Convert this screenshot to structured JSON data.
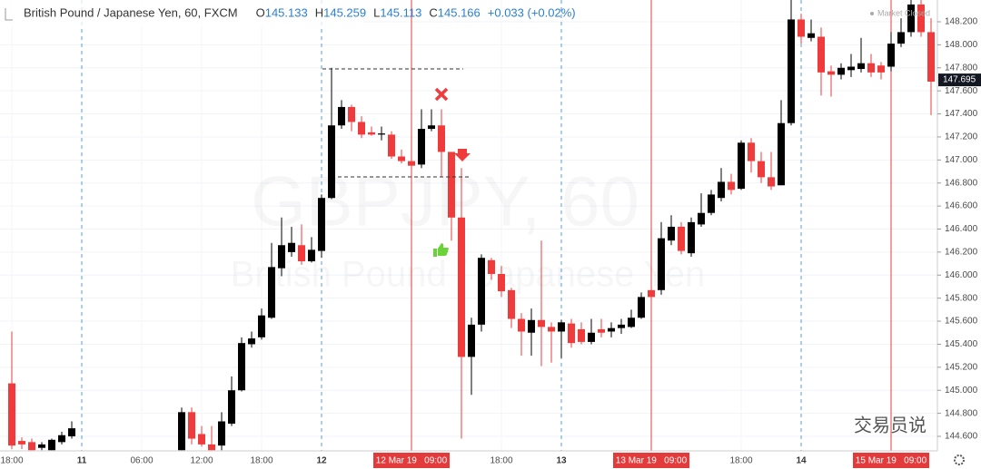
{
  "chart_data": {
    "type": "candlestick",
    "symbol": "British Pound / Japanese Yen, 60, FXCM",
    "ohlc_legend": [
      {
        "label": "O",
        "value": 145.133
      },
      {
        "label": "H",
        "value": 145.259
      },
      {
        "label": "L",
        "value": 145.113
      },
      {
        "label": "C",
        "value": 145.166
      }
    ],
    "change": "+0.033 (+0.02%)",
    "status": "Market Closed",
    "watermark": "GBPJPY, 60",
    "watermark_subtitle": "British Pound / Japanese Yen",
    "credit": "交易员说",
    "last_price": 147.695,
    "up_color": "#000000",
    "down_color": "#ef3b3b",
    "ylim": [
      144.474,
      148.389
    ],
    "yticks": [
      {
        "value": 148.2,
        "label": "148.200"
      },
      {
        "value": 148.0,
        "label": "148.000"
      },
      {
        "value": 147.8,
        "label": "147.800"
      },
      {
        "value": 147.6,
        "label": "147.600"
      },
      {
        "value": 147.4,
        "label": "147.400"
      },
      {
        "value": 147.2,
        "label": "147.200"
      },
      {
        "value": 147.0,
        "label": "147.000"
      },
      {
        "value": 146.8,
        "label": "146.800"
      },
      {
        "value": 146.6,
        "label": "146.600"
      },
      {
        "value": 146.4,
        "label": "146.400"
      },
      {
        "value": 146.2,
        "label": "146.200"
      },
      {
        "value": 146.0,
        "label": "146.000"
      },
      {
        "value": 145.8,
        "label": "145.800"
      },
      {
        "value": 145.6,
        "label": "145.600"
      },
      {
        "value": 145.4,
        "label": "145.400"
      },
      {
        "value": 145.2,
        "label": "145.200"
      },
      {
        "value": 145.0,
        "label": "145.000"
      },
      {
        "value": 144.8,
        "label": "144.800"
      },
      {
        "value": 144.6,
        "label": "144.600"
      }
    ],
    "grid": true,
    "categories": [
      "18:00",
      null,
      null,
      null,
      null,
      null,
      null,
      "11",
      null,
      null,
      null,
      null,
      null,
      "06:00",
      null,
      null,
      null,
      null,
      null,
      "12:00",
      null,
      null,
      null,
      null,
      null,
      "18:00",
      null,
      null,
      null,
      null,
      null,
      "12",
      null,
      null,
      null,
      null,
      null,
      null,
      null,
      null,
      "12 Mar 19   09:00",
      null,
      null,
      null,
      null,
      null,
      null,
      null,
      null,
      "18:00",
      null,
      null,
      null,
      null,
      null,
      "13",
      null,
      null,
      null,
      null,
      null,
      null,
      null,
      null,
      "13 Mar 19   09:00",
      null,
      null,
      null,
      null,
      null,
      null,
      null,
      null,
      "18:00",
      null,
      null,
      null,
      null,
      null,
      "14",
      null,
      null,
      null,
      null,
      null,
      null,
      null,
      null,
      "15 Mar 19   09:00",
      null,
      null,
      null,
      null
    ],
    "open": [
      145.06,
      144.56,
      144.55,
      144.5,
      144.48,
      144.55,
      144.6,
      null,
      null,
      null,
      null,
      null,
      null,
      null,
      null,
      null,
      null,
      144.48,
      144.81,
      144.62,
      144.53,
      144.52,
      144.71,
      145.0,
      145.4,
      145.46,
      145.63,
      146.06,
      146.2,
      146.26,
      146.12,
      146.21,
      146.67,
      147.3,
      147.46,
      147.33,
      147.24,
      147.22,
      147.22,
      147.03,
      146.99,
      146.96,
      147.27,
      147.3,
      147.07,
      146.5,
      145.29,
      145.57,
      146.13,
      146.01,
      145.87,
      145.62,
      145.5,
      145.61,
      145.55,
      145.51,
      145.58,
      145.53,
      145.42,
      145.53,
      145.51,
      145.54,
      145.55,
      145.63,
      145.87,
      145.87,
      146.3,
      146.42,
      146.19,
      146.44,
      146.54,
      146.67,
      146.81,
      146.75,
      147.15,
      146.99,
      146.85,
      146.78,
      147.32,
      148.22,
      148.06,
      148.07,
      147.77,
      147.74,
      147.78,
      147.79,
      147.84,
      147.82,
      147.81,
      148.01,
      148.11,
      148.35,
      148.11
    ],
    "high": [
      145.51,
      144.59,
      144.58,
      144.55,
      144.58,
      144.64,
      144.73,
      null,
      null,
      null,
      null,
      null,
      null,
      null,
      null,
      null,
      null,
      144.85,
      144.85,
      144.69,
      144.69,
      144.81,
      145.12,
      145.46,
      145.51,
      145.71,
      146.28,
      146.5,
      146.42,
      146.44,
      146.33,
      146.7,
      147.8,
      147.52,
      147.48,
      147.38,
      147.29,
      147.29,
      147.25,
      147.09,
      147.07,
      147.44,
      147.44,
      147.44,
      147.07,
      146.93,
      145.63,
      146.18,
      146.15,
      146.08,
      145.89,
      145.67,
      145.71,
      146.3,
      145.59,
      145.61,
      145.62,
      145.59,
      145.62,
      145.62,
      145.59,
      145.62,
      145.7,
      145.85,
      146.05,
      146.46,
      146.52,
      146.46,
      146.5,
      146.71,
      146.74,
      146.93,
      146.88,
      147.17,
      147.19,
      147.07,
      147.07,
      147.52,
      148.39,
      148.27,
      148.22,
      148.15,
      147.82,
      147.84,
      147.92,
      148.06,
      147.92,
      147.85,
      148.11,
      148.23,
      148.39,
      148.39,
      148.23
    ],
    "low": [
      144.49,
      144.49,
      144.48,
      144.48,
      144.48,
      144.53,
      144.58,
      null,
      null,
      null,
      null,
      null,
      null,
      null,
      null,
      null,
      null,
      144.48,
      144.53,
      144.51,
      144.48,
      144.48,
      144.69,
      144.99,
      145.37,
      145.44,
      145.62,
      145.99,
      146.16,
      146.09,
      146.11,
      146.15,
      146.66,
      147.27,
      147.25,
      147.19,
      147.21,
      147.17,
      147.01,
      146.97,
      146.85,
      146.93,
      147.25,
      146.85,
      146.3,
      144.58,
      144.96,
      145.51,
      145.96,
      145.81,
      145.54,
      145.3,
      145.3,
      145.21,
      145.24,
      145.28,
      145.37,
      145.4,
      145.4,
      145.46,
      145.46,
      145.49,
      145.54,
      145.62,
      145.75,
      145.83,
      146.26,
      146.18,
      146.16,
      146.42,
      146.52,
      146.64,
      146.7,
      146.74,
      146.89,
      146.8,
      146.74,
      146.78,
      147.3,
      148.01,
      148.03,
      147.56,
      147.55,
      147.7,
      147.72,
      147.76,
      147.72,
      147.7,
      147.77,
      147.98,
      148.07,
      148.07,
      147.39
    ],
    "close": [
      144.52,
      144.53,
      144.48,
      144.53,
      144.57,
      144.61,
      144.67,
      null,
      null,
      null,
      null,
      null,
      null,
      null,
      null,
      null,
      null,
      144.81,
      144.58,
      144.53,
      144.48,
      144.73,
      145.0,
      145.41,
      145.45,
      145.65,
      146.07,
      146.26,
      146.28,
      146.12,
      146.22,
      146.67,
      147.3,
      147.46,
      147.33,
      147.22,
      147.22,
      147.23,
      147.03,
      146.99,
      146.95,
      147.27,
      147.3,
      147.07,
      146.5,
      145.29,
      145.57,
      146.15,
      146.01,
      145.86,
      145.62,
      145.51,
      145.61,
      145.55,
      145.51,
      145.59,
      145.41,
      145.42,
      145.5,
      145.5,
      145.54,
      145.57,
      145.63,
      145.81,
      145.81,
      146.32,
      146.42,
      146.21,
      146.46,
      146.54,
      146.7,
      146.81,
      146.74,
      147.15,
      146.99,
      146.85,
      146.77,
      147.32,
      148.22,
      148.07,
      148.1,
      147.76,
      147.74,
      147.8,
      147.81,
      147.84,
      147.76,
      147.76,
      148.01,
      148.11,
      148.35,
      148.11,
      147.68
    ]
  }
}
